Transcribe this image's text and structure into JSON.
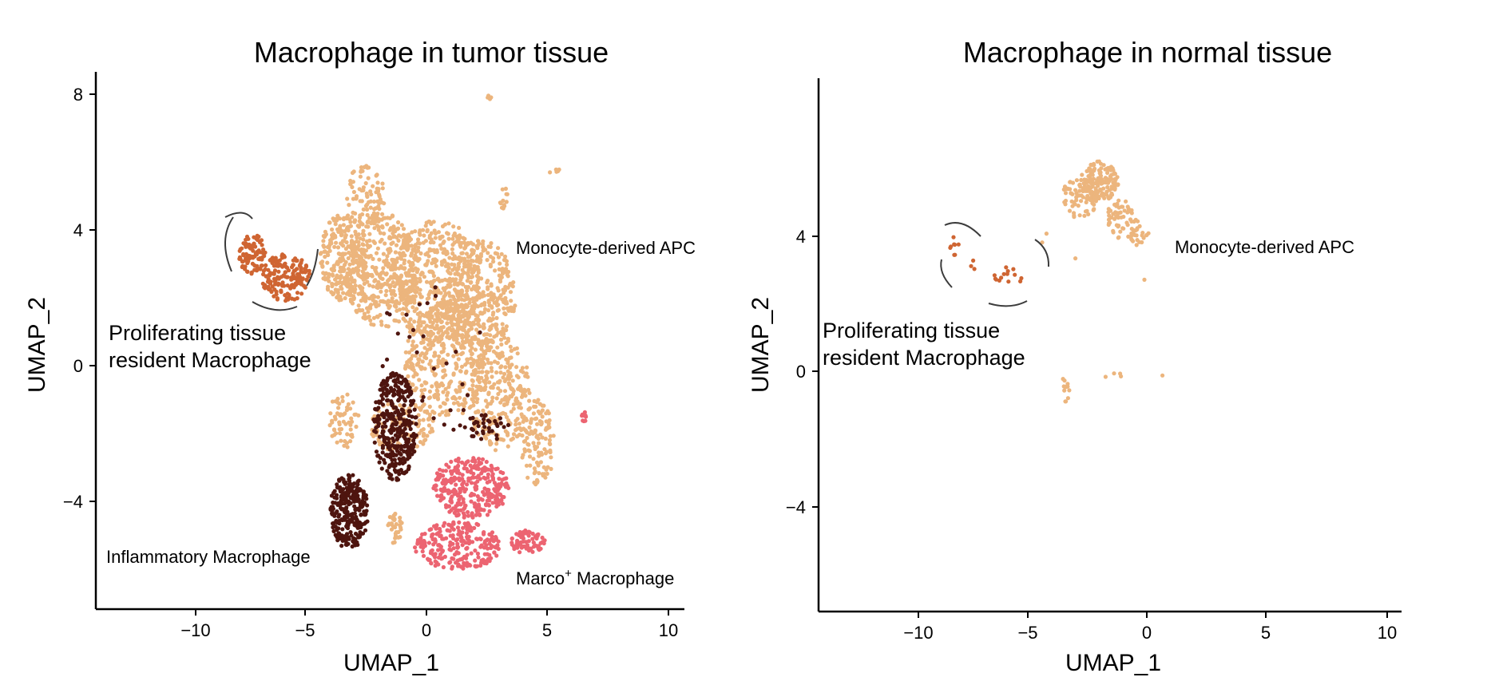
{
  "chart_data": [
    {
      "type": "scatter",
      "title": "Macrophage in tumor tissue",
      "xlabel": "UMAP_1",
      "ylabel": "UMAP_2",
      "xlim": [
        -14.5,
        10.5
      ],
      "ylim": [
        -7.2,
        8.6
      ],
      "xticks": [
        "−10",
        "−5",
        "0",
        "5",
        "10"
      ],
      "yticks": [
        "8",
        "4",
        "0",
        "−4"
      ],
      "grid": false,
      "legend": "none",
      "colors": {
        "Monocyte-derived APC": "#ecb57d",
        "Proliferating tissue resident Macrophage": "#cf6532",
        "Inflammatory Macrophage": "#4e150f",
        "Marco+ Macrophage": "#ec6471"
      },
      "annotations": {
        "mono": "Monocyte-derived APC",
        "prolif_line1": "Proliferating tissue",
        "prolif_line2": "resident Macrophage",
        "inflam": "Inflammatory Macrophage",
        "marco_main": "Marco",
        "marco_sup": "+",
        "marco_rest": " Macrophage"
      },
      "clusters": [
        {
          "name": "Monocyte-derived APC",
          "color": "#ecb57d",
          "regions": [
            {
              "cx": -3.4,
              "cy": 3.2,
              "rx": 1.0,
              "ry": 1.3,
              "n": 260
            },
            {
              "cx": -1.8,
              "cy": 2.8,
              "rx": 1.6,
              "ry": 1.7,
              "n": 420
            },
            {
              "cx": 0.4,
              "cy": 2.5,
              "rx": 1.9,
              "ry": 1.8,
              "n": 440
            },
            {
              "cx": 2.2,
              "cy": 2.1,
              "rx": 1.5,
              "ry": 1.6,
              "n": 330
            },
            {
              "cx": 0.9,
              "cy": 0.2,
              "rx": 1.8,
              "ry": 1.7,
              "n": 420
            },
            {
              "cx": 3.0,
              "cy": -0.8,
              "rx": 1.3,
              "ry": 1.7,
              "n": 260
            },
            {
              "cx": 4.6,
              "cy": -2.3,
              "rx": 0.7,
              "ry": 1.3,
              "n": 120
            },
            {
              "cx": -2.5,
              "cy": 5.0,
              "rx": 0.8,
              "ry": 1.0,
              "n": 90
            },
            {
              "cx": -1.0,
              "cy": -1.8,
              "rx": 1.3,
              "ry": 0.8,
              "n": 120
            },
            {
              "cx": -3.4,
              "cy": -1.6,
              "rx": 0.6,
              "ry": 0.9,
              "n": 60
            },
            {
              "cx": -1.3,
              "cy": -4.8,
              "rx": 0.3,
              "ry": 0.5,
              "n": 30
            },
            {
              "cx": 3.2,
              "cy": 5.0,
              "rx": 0.2,
              "ry": 0.4,
              "n": 12
            },
            {
              "cx": 5.3,
              "cy": 5.7,
              "rx": 0.2,
              "ry": 0.2,
              "n": 5
            },
            {
              "cx": 2.6,
              "cy": 7.9,
              "rx": 0.08,
              "ry": 0.08,
              "n": 4
            }
          ]
        },
        {
          "name": "Proliferating tissue resident Macrophage",
          "color": "#cf6532",
          "regions": [
            {
              "cx": -7.2,
              "cy": 3.3,
              "rx": 0.55,
              "ry": 0.6,
              "n": 90
            },
            {
              "cx": -5.8,
              "cy": 2.6,
              "rx": 1.0,
              "ry": 0.7,
              "n": 170
            }
          ]
        },
        {
          "name": "Inflammatory Macrophage",
          "color": "#4e150f",
          "regions": [
            {
              "cx": -1.3,
              "cy": -1.8,
              "rx": 0.9,
              "ry": 1.6,
              "n": 320
            },
            {
              "cx": -3.2,
              "cy": -4.3,
              "rx": 0.8,
              "ry": 1.1,
              "n": 260
            },
            {
              "cx": 2.5,
              "cy": -1.8,
              "rx": 1.0,
              "ry": 0.4,
              "n": 35
            },
            {
              "cx": 0.2,
              "cy": 0.5,
              "rx": 2.6,
              "ry": 2.6,
              "n": 30
            }
          ]
        },
        {
          "name": "Marco+ Macrophage",
          "color": "#ec6471",
          "regions": [
            {
              "cx": 1.8,
              "cy": -3.6,
              "rx": 1.6,
              "ry": 0.9,
              "n": 300
            },
            {
              "cx": 1.3,
              "cy": -5.3,
              "rx": 1.8,
              "ry": 0.7,
              "n": 230
            },
            {
              "cx": 4.2,
              "cy": -5.2,
              "rx": 0.7,
              "ry": 0.35,
              "n": 70
            },
            {
              "cx": 6.5,
              "cy": -1.5,
              "rx": 0.12,
              "ry": 0.15,
              "n": 10
            }
          ]
        }
      ]
    },
    {
      "type": "scatter",
      "title": "Macrophage in normal tissue",
      "xlabel": "UMAP_1",
      "ylabel": "UMAP_2",
      "xlim": [
        -14.5,
        10.5
      ],
      "ylim": [
        -7.2,
        8.6
      ],
      "xticks": [
        "−10",
        "−5",
        "0",
        "5",
        "10"
      ],
      "yticks": [
        "4",
        "0",
        "−4"
      ],
      "grid": false,
      "legend": "none",
      "colors": {
        "Monocyte-derived APC": "#ecb57d",
        "Proliferating tissue resident Macrophage": "#cf6532"
      },
      "annotations": {
        "mono": "Monocyte-derived APC",
        "prolif_line1": "Proliferating tissue",
        "prolif_line2": "resident Macrophage"
      },
      "clusters": [
        {
          "name": "Monocyte-derived APC",
          "color": "#ecb57d",
          "regions": [
            {
              "cx": -2.0,
              "cy": 5.6,
              "rx": 0.8,
              "ry": 0.6,
              "n": 130
            },
            {
              "cx": -2.8,
              "cy": 5.1,
              "rx": 0.8,
              "ry": 0.6,
              "n": 80
            },
            {
              "cx": -1.0,
              "cy": 4.5,
              "rx": 0.7,
              "ry": 0.6,
              "n": 60
            },
            {
              "cx": -0.3,
              "cy": 4.0,
              "rx": 0.4,
              "ry": 0.3,
              "n": 20
            },
            {
              "cx": -3.4,
              "cy": -0.4,
              "rx": 0.15,
              "ry": 0.5,
              "n": 12
            },
            {
              "cx": -1.4,
              "cy": -0.2,
              "rx": 0.4,
              "ry": 0.2,
              "n": 4
            },
            {
              "cx": 0.6,
              "cy": -0.2,
              "rx": 0.1,
              "ry": 0.1,
              "n": 1
            },
            {
              "cx": -4.3,
              "cy": 3.9,
              "rx": 0.2,
              "ry": 0.2,
              "n": 2
            },
            {
              "cx": -3.0,
              "cy": 3.3,
              "rx": 0.1,
              "ry": 0.1,
              "n": 1
            },
            {
              "cx": -0.2,
              "cy": 2.7,
              "rx": 0.1,
              "ry": 0.1,
              "n": 1
            }
          ]
        },
        {
          "name": "Proliferating tissue resident Macrophage",
          "color": "#cf6532",
          "regions": [
            {
              "cx": -8.1,
              "cy": 3.7,
              "rx": 0.25,
              "ry": 0.3,
              "n": 8
            },
            {
              "cx": -7.3,
              "cy": 3.1,
              "rx": 0.1,
              "ry": 0.2,
              "n": 3
            },
            {
              "cx": -5.8,
              "cy": 2.8,
              "rx": 0.6,
              "ry": 0.3,
              "n": 14
            }
          ]
        }
      ]
    }
  ]
}
